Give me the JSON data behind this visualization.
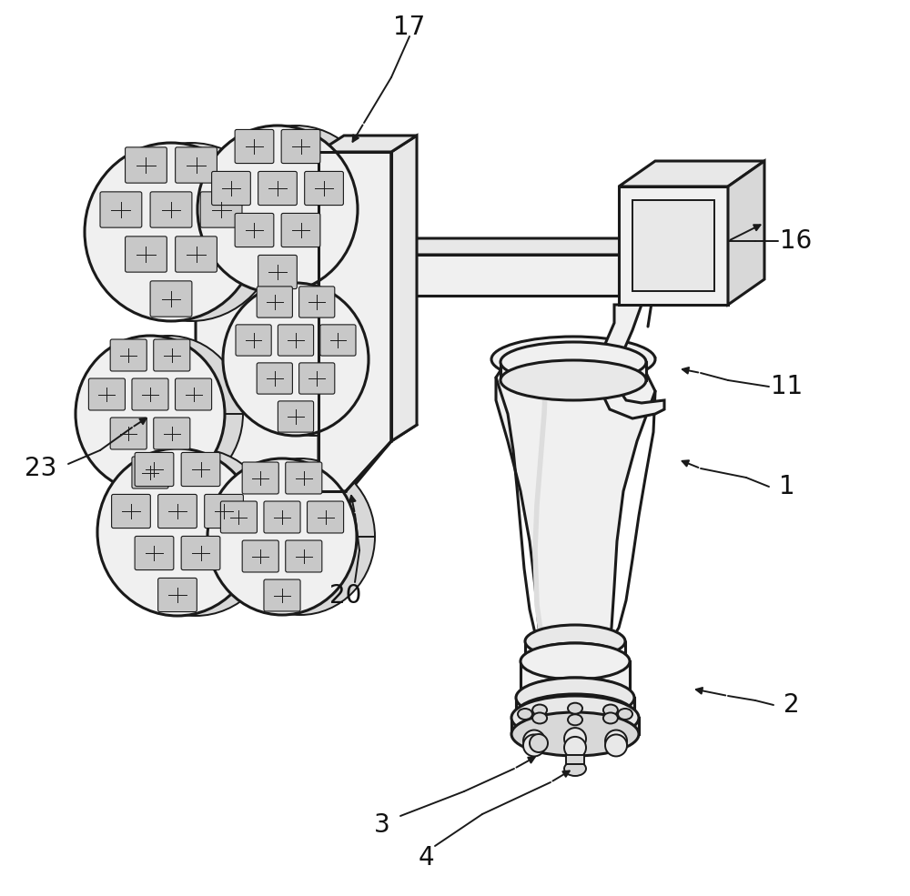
{
  "bg_color": "#ffffff",
  "line_color": "#1a1a1a",
  "line_width": 1.8,
  "label_fontsize": 20,
  "figsize": [
    10.0,
    9.85
  ],
  "dpi": 100,
  "body_color": "#f0f0f0",
  "body_dark": "#d8d8d8",
  "body_mid": "#e8e8e8",
  "bristle_color": "#c8c8c8",
  "bristle_dark": "#b0b0b0"
}
